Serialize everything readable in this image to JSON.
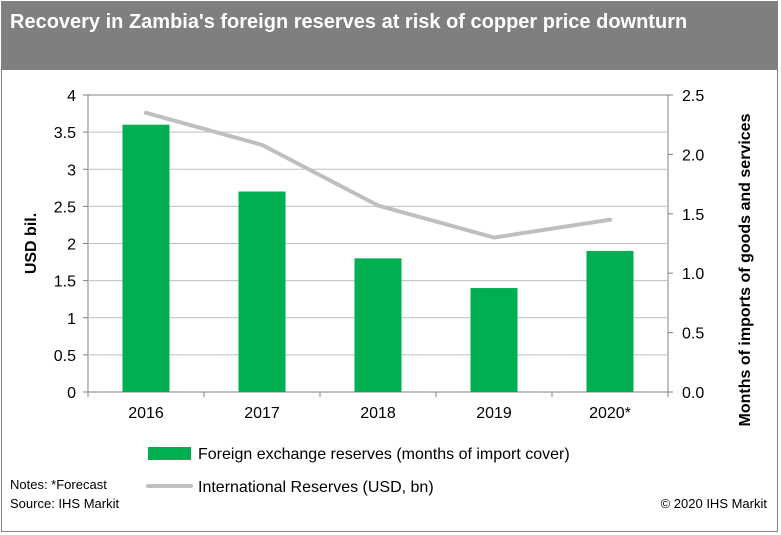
{
  "title": "Recovery in Zambia's foreign reserves at risk of copper price downturn",
  "footer": {
    "notes": "Notes: *Forecast",
    "source": "Source: IHS Markit",
    "copyright": "© 2020 IHS Markit"
  },
  "colors": {
    "title_bg": "#7f7f7f",
    "bar": "#00b050",
    "line": "#bfbfbf"
  },
  "chart_data": {
    "type": "bar",
    "categories": [
      "2016",
      "2017",
      "2018",
      "2019",
      "2020*"
    ],
    "series": [
      {
        "name": "Foreign exchange reserves (months of import cover)",
        "type": "bar",
        "axis": "left",
        "values": [
          3.6,
          2.7,
          1.8,
          1.4,
          1.9
        ]
      },
      {
        "name": "International Reserves (USD, bn)",
        "type": "line",
        "axis": "right",
        "values": [
          2.35,
          2.08,
          1.57,
          1.3,
          1.45
        ]
      }
    ],
    "ylabel": "USD bil.",
    "y2label": "Months of imports of goods and services",
    "ylim": [
      0,
      4
    ],
    "y2lim": [
      0,
      2.5
    ],
    "yticks": [
      "0",
      "0.5",
      "1",
      "1.5",
      "2",
      "2.5",
      "3",
      "3.5",
      "4"
    ],
    "y2ticks": [
      "0.0",
      "0.5",
      "1.0",
      "1.5",
      "2.0",
      "2.5"
    ],
    "grid": true,
    "legend_position": "bottom"
  }
}
